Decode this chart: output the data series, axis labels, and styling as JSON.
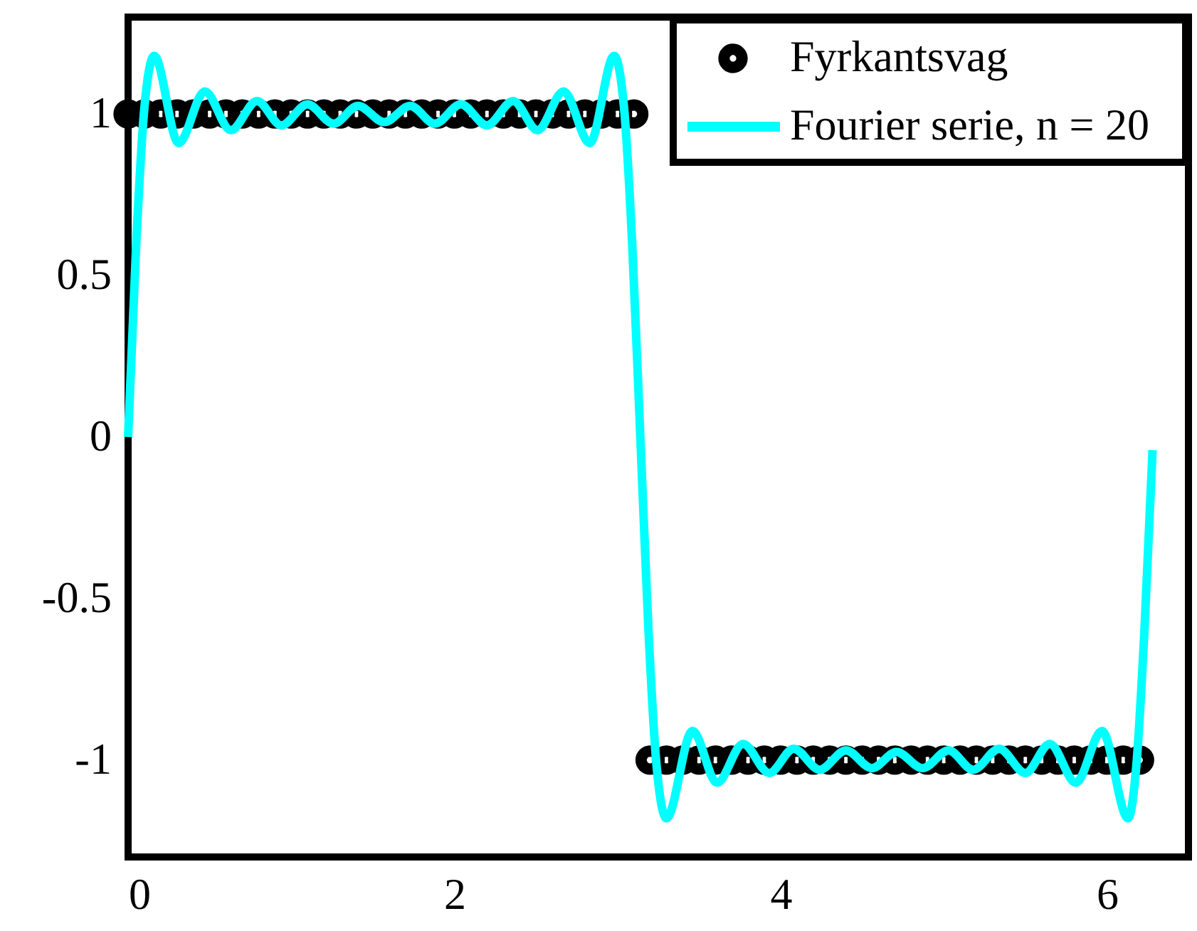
{
  "chart_data": {
    "type": "line",
    "xlim": [
      0,
      6.5
    ],
    "ylim": [
      -1.3,
      1.3
    ],
    "xticks": [
      0,
      2,
      4,
      6
    ],
    "yticks": [
      -1,
      -0.5,
      0,
      0.5,
      1
    ],
    "legend": "top right",
    "series": [
      {
        "name": "Fyrkantsvag",
        "type": "scatter",
        "marker": "circle",
        "color": "#000000",
        "x": [
          0.0,
          0.1,
          0.2,
          0.3,
          0.4,
          0.5,
          0.6,
          0.7,
          0.8,
          0.9,
          1.0,
          1.1,
          1.2,
          1.3,
          1.4,
          1.5,
          1.6,
          1.7,
          1.8,
          1.9,
          2.0,
          2.1,
          2.2,
          2.3,
          2.4,
          2.5,
          2.6,
          2.7,
          2.8,
          2.9,
          3.0,
          3.1,
          3.2,
          3.3,
          3.4,
          3.5,
          3.6,
          3.7,
          3.8,
          3.9,
          4.0,
          4.1,
          4.2,
          4.3,
          4.4,
          4.5,
          4.6,
          4.7,
          4.8,
          4.9,
          5.0,
          5.1,
          5.2,
          5.3,
          5.4,
          5.5,
          5.6,
          5.7,
          5.8,
          5.9,
          6.0,
          6.1,
          6.2
        ],
        "values": [
          1,
          1,
          1,
          1,
          1,
          1,
          1,
          1,
          1,
          1,
          1,
          1,
          1,
          1,
          1,
          1,
          1,
          1,
          1,
          1,
          1,
          1,
          1,
          1,
          1,
          1,
          1,
          1,
          1,
          1,
          1,
          1,
          -1,
          -1,
          -1,
          -1,
          -1,
          -1,
          -1,
          -1,
          -1,
          -1,
          -1,
          -1,
          -1,
          -1,
          -1,
          -1,
          -1,
          -1,
          -1,
          -1,
          -1,
          -1,
          -1,
          -1,
          -1,
          -1,
          -1,
          -1,
          -1,
          -1,
          -1
        ]
      },
      {
        "name": "Fourier serie, n = 20",
        "color": "#00ffff",
        "x": [
          0,
          0.05,
          0.1,
          0.16,
          0.31,
          0.47,
          0.63,
          0.79,
          0.94,
          1.1,
          1.26,
          1.41,
          1.57,
          1.73,
          1.88,
          2.04,
          2.2,
          2.36,
          2.51,
          2.67,
          2.83,
          2.98,
          3.04,
          3.09,
          3.14,
          3.19,
          3.24,
          3.3,
          3.46,
          3.61,
          3.77,
          3.93,
          4.08,
          4.24,
          4.4,
          4.56,
          4.71,
          4.87,
          5.03,
          5.18,
          5.34,
          5.5,
          5.65,
          5.81,
          5.97,
          6.13,
          6.18,
          6.23,
          6.28
        ],
        "values": [
          0,
          0.6,
          1.02,
          1.18,
          0.91,
          1.07,
          0.95,
          1.04,
          0.965,
          1.03,
          0.97,
          1.025,
          0.975,
          1.025,
          0.97,
          1.03,
          0.965,
          1.04,
          0.95,
          1.07,
          0.91,
          1.18,
          1.02,
          0.6,
          0,
          -0.6,
          -1.02,
          -1.18,
          -0.91,
          -1.07,
          -0.95,
          -1.04,
          -0.965,
          -1.03,
          -0.97,
          -1.025,
          -0.975,
          -1.025,
          -0.97,
          -1.03,
          -0.965,
          -1.04,
          -0.95,
          -1.07,
          -0.91,
          -1.18,
          -1.02,
          -0.6,
          -0.04
        ]
      }
    ]
  }
}
